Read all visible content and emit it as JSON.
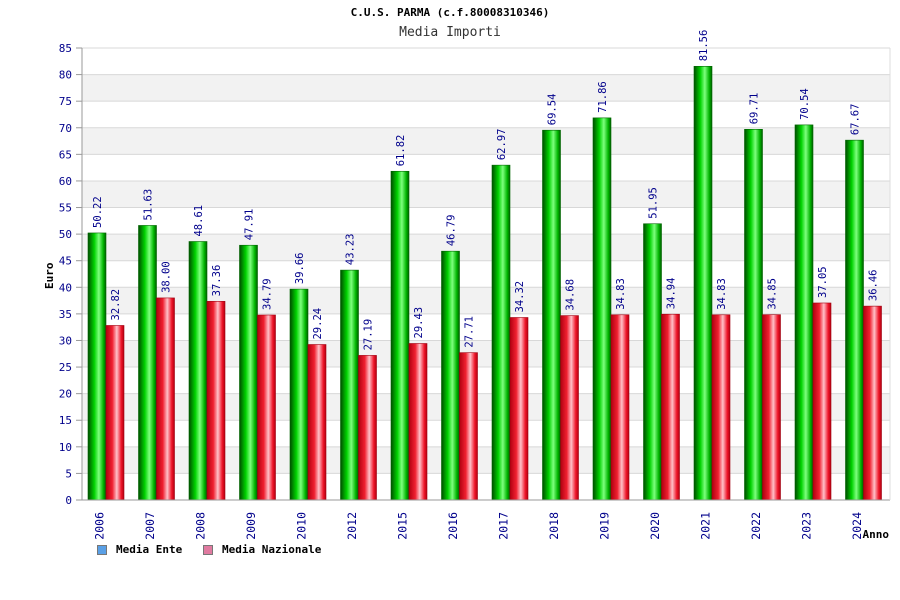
{
  "title": "C.U.S. PARMA (c.f.80008310346)",
  "subtitle": "Media Importi",
  "chart_data": {
    "type": "bar",
    "title": "C.U.S. PARMA (c.f.80008310346)",
    "subtitle": "Media Importi",
    "xlabel": "Anno",
    "ylabel": "Euro",
    "ylim": [
      0,
      85
    ],
    "yticks": [
      0,
      5,
      10,
      15,
      20,
      25,
      30,
      35,
      40,
      45,
      50,
      55,
      60,
      65,
      70,
      75,
      80,
      85
    ],
    "grid": true,
    "legend_position": "bottom-left",
    "categories": [
      "2006",
      "2007",
      "2008",
      "2009",
      "2010",
      "2012",
      "2015",
      "2016",
      "2017",
      "2018",
      "2019",
      "2020",
      "2021",
      "2022",
      "2023",
      "2024"
    ],
    "series": [
      {
        "name": "Media Ente",
        "color": "#00b400",
        "values": [
          50.22,
          51.63,
          48.61,
          47.91,
          39.66,
          43.23,
          61.82,
          46.79,
          62.97,
          69.54,
          71.86,
          51.95,
          81.56,
          69.71,
          70.54,
          67.67
        ],
        "labels": [
          "50.22",
          "51.63",
          "48.61",
          "47.91",
          "39.66",
          "43.23",
          "61.82",
          "46.79",
          "62.97",
          "69.54",
          "71.86",
          "51.95",
          "81.56",
          "69.71",
          "70.54",
          "67.67"
        ]
      },
      {
        "name": "Media Nazionale",
        "color": "#e8001c",
        "values": [
          32.82,
          38.0,
          37.36,
          34.79,
          29.24,
          27.19,
          29.43,
          27.71,
          34.32,
          34.68,
          34.83,
          34.94,
          34.83,
          34.85,
          37.05,
          36.46
        ],
        "labels": [
          "32.82",
          "38.00",
          "37.36",
          "34.79",
          "29.24",
          "27.19",
          "29.43",
          "27.71",
          "34.32",
          "34.68",
          "34.83",
          "34.94",
          "34.83",
          "34.85",
          "37.05",
          "36.46"
        ]
      }
    ]
  },
  "legend": {
    "items": [
      {
        "label": "Media Ente",
        "color": "#5aa0e6"
      },
      {
        "label": "Media Nazionale",
        "color": "#e07aa0"
      }
    ]
  },
  "colors": {
    "axis_text": "#00008b",
    "band": "#f2f2f2",
    "grid": "#d8d8d8"
  }
}
